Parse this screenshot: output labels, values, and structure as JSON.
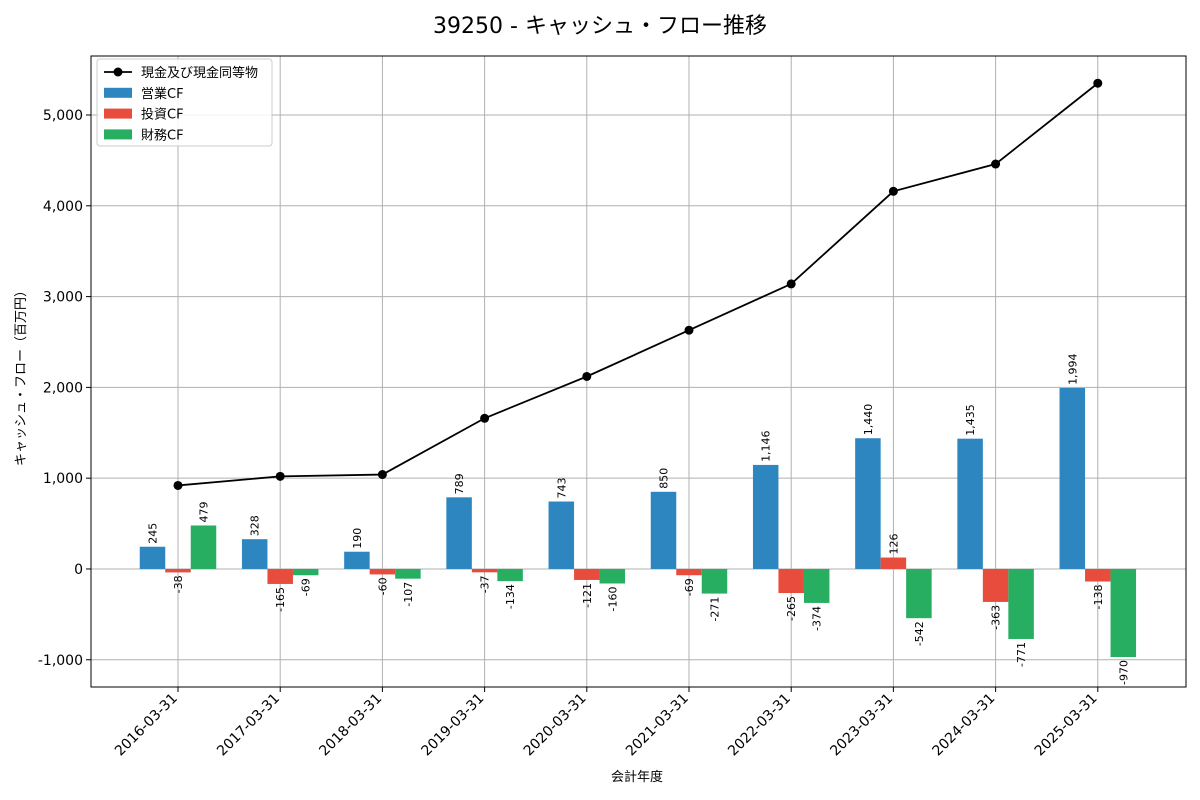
{
  "chart_data": {
    "type": "bar",
    "title": "39250 - キャッシュ・フロー推移",
    "xlabel": "会計年度",
    "ylabel": "キャッシュ・フロー（百万円）",
    "categories": [
      "2016-03-31",
      "2017-03-31",
      "2018-03-31",
      "2019-03-31",
      "2020-03-31",
      "2021-03-31",
      "2022-03-31",
      "2023-03-31",
      "2024-03-31",
      "2025-03-31"
    ],
    "ylim": [
      -1300,
      5650
    ],
    "yticks": [
      -1000,
      0,
      1000,
      2000,
      3000,
      4000,
      5000
    ],
    "ytick_labels": [
      "-1,000",
      "0",
      "1,000",
      "2,000",
      "3,000",
      "4,000",
      "5,000"
    ],
    "grid": true,
    "legend_position": "top-left",
    "line_series": {
      "name": "現金及び現金同等物",
      "color": "#000000",
      "values": [
        920,
        1020,
        1040,
        1660,
        2120,
        2630,
        3140,
        4160,
        4460,
        5350
      ]
    },
    "series": [
      {
        "name": "営業CF",
        "color": "#2e86c1",
        "values": [
          245,
          328,
          190,
          789,
          743,
          850,
          1146,
          1440,
          1435,
          1994
        ],
        "labels": [
          "245",
          "328",
          "190",
          "789",
          "743",
          "850",
          "1,146",
          "1,440",
          "1,435",
          "1,994"
        ]
      },
      {
        "name": "投資CF",
        "color": "#e74c3c",
        "values": [
          -38,
          -165,
          -60,
          -37,
          -121,
          -69,
          -265,
          126,
          -363,
          -138
        ],
        "labels": [
          "-38",
          "-165",
          "-60",
          "-37",
          "-121",
          "-69",
          "-265",
          "126",
          "-363",
          "-138"
        ]
      },
      {
        "name": "財務CF",
        "color": "#27ae60",
        "values": [
          479,
          -69,
          -107,
          -134,
          -160,
          -271,
          -374,
          -542,
          -771,
          -970
        ],
        "labels": [
          "479",
          "-69",
          "-107",
          "-134",
          "-160",
          "-271",
          "-374",
          "-542",
          "-771",
          "-970"
        ]
      }
    ]
  }
}
